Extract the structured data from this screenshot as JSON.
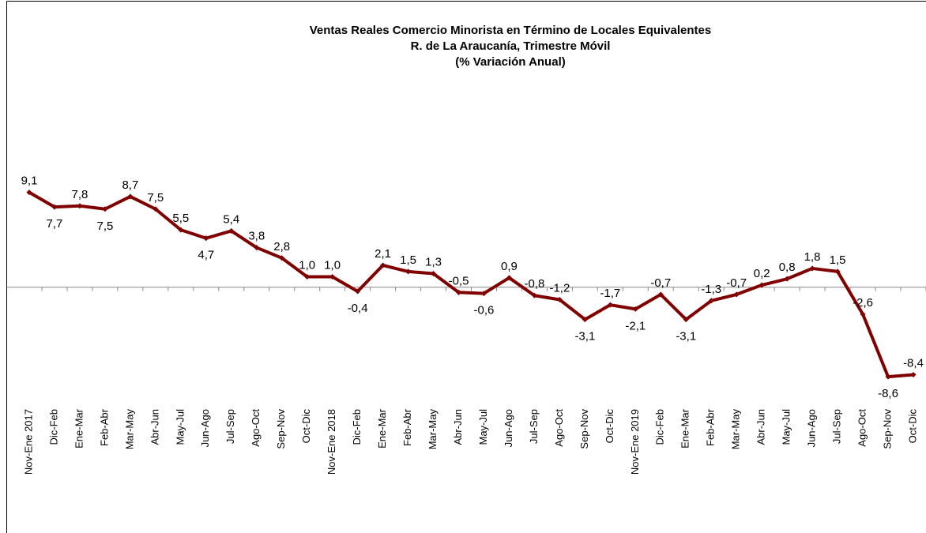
{
  "chart_data": {
    "type": "line",
    "title": [
      "Ventas Reales Comercio Minorista  en Término de Locales Equivalentes",
      "R. de La Araucanía, Trimestre Móvil",
      "(% Variación Anual)"
    ],
    "categories": [
      "Nov-Ene 2017",
      "Dic-Feb",
      "Ene-Mar",
      "Feb-Abr",
      "Mar-May",
      "Abr-Jun",
      "May-Jul",
      "Jun-Ago",
      "Jul-Sep",
      "Ago-Oct",
      "Sep-Nov",
      "Oct-Dic",
      "Nov-Ene 2018",
      "Dic-Feb",
      "Ene-Mar",
      "Feb-Abr",
      "Mar-May",
      "Abr-Jun",
      "May-Jul",
      "Jun-Ago",
      "Jul-Sep",
      "Ago-Oct",
      "Sep-Nov",
      "Oct-Dic",
      "Nov-Ene 2019",
      "Dic-Feb",
      "Ene-Mar",
      "Feb-Abr",
      "Mar-May",
      "Abr-Jun",
      "May-Jul",
      "Jun-Ago",
      "Jul-Sep",
      "Ago-Oct",
      "Sep-Nov",
      "Oct-Dic"
    ],
    "values": [
      9.1,
      7.7,
      7.8,
      7.5,
      8.7,
      7.5,
      5.5,
      4.7,
      5.4,
      3.8,
      2.8,
      1.0,
      1.0,
      -0.4,
      2.1,
      1.5,
      1.3,
      -0.5,
      -0.6,
      0.9,
      -0.8,
      -1.2,
      -3.1,
      -1.7,
      -2.1,
      -0.7,
      -3.1,
      -1.3,
      -0.7,
      0.2,
      0.8,
      1.8,
      1.5,
      -2.6,
      -8.6,
      -8.4
    ],
    "value_labels": [
      "9,1",
      "7,7",
      "7,8",
      "7,5",
      "8,7",
      "7,5",
      "5,5",
      "4,7",
      "5,4",
      "3,8",
      "2,8",
      "1,0",
      "1,0",
      "-0,4",
      "2,1",
      "1,5",
      "1,3",
      "-0,5",
      "-0,6",
      "0,9",
      "-0,8",
      "-1,2",
      "-3,1",
      "-1,7",
      "-2,1",
      "-0,7",
      "-3,1",
      "-1,3",
      "-0,7",
      "0,2",
      "0,8",
      "1,8",
      "1,5",
      "-2,6",
      "-8,6",
      "-8,4"
    ],
    "color": "#800000",
    "ylim": [
      -12,
      14
    ]
  }
}
